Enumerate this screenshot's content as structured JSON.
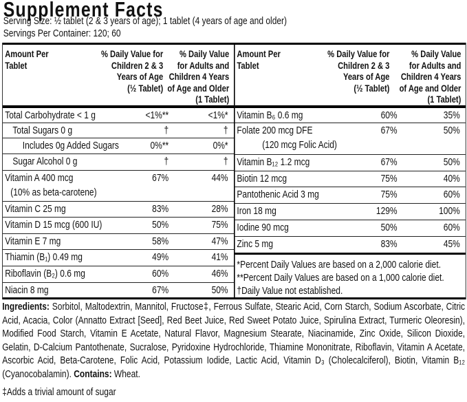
{
  "title": "Supplement Facts",
  "serving_size": "Serving Size: ½ tablet (2 & 3 years of age); 1 tablet (4 years of age and older)",
  "servings_per_container": "Servings Per Container: 120; 60",
  "table": {
    "header": [
      "Amount Per\nTablet",
      "% Daily Value for\nChildren 2 & 3\nYears of Age\n(½ Tablet)",
      "% Daily Value\nfor Adults and\nChildren 4 Years\nof Age and Older\n(1 Tablet)"
    ],
    "left_rows": [
      {
        "name": "Total Carbohydrate < 1 g",
        "children": "<1%**",
        "adults": "<1%*"
      },
      {
        "name": "Total Sugars 0 g",
        "children": "†",
        "adults": "†"
      },
      {
        "name": "Includes 0g Added Sugars",
        "children": "0%**",
        "adults": "0%*"
      },
      {
        "name": "Sugar Alcohol 0 g",
        "children": "†",
        "adults": "†"
      },
      {
        "name": "Vitamin A 400 mcg",
        "note": "(10% as beta-carotene)",
        "children": "67%",
        "adults": "44%"
      },
      {
        "name": "Vitamin C 25 mg",
        "children": "83%",
        "adults": "28%"
      },
      {
        "name": "Vitamin D 15 mcg (600 IU)",
        "children": "50%",
        "adults": "75%"
      },
      {
        "name": "Vitamin E 7 mg",
        "children": "58%",
        "adults": "47%"
      },
      {
        "name": "Thiamin (B₁) 0.49 mg",
        "children": "49%",
        "adults": "41%"
      },
      {
        "name": "Riboflavin (B₂) 0.6 mg",
        "children": "60%",
        "adults": "46%"
      },
      {
        "name": "Niacin 8 mg",
        "children": "67%",
        "adults": "50%"
      }
    ],
    "right_rows": [
      {
        "name": "Vitamin B₆ 0.6 mg",
        "children": "60%",
        "adults": "35%"
      },
      {
        "name": "Folate 200 mcg DFE",
        "note": "(120 mcg Folic Acid)",
        "children": "67%",
        "adults": "50%"
      },
      {
        "name": "Vitamin B₁₂ 1.2 mcg",
        "children": "67%",
        "adults": "50%"
      },
      {
        "name": "Biotin 12 mcg",
        "children": "75%",
        "adults": "40%"
      },
      {
        "name": "Pantothenic Acid 3 mg",
        "children": "75%",
        "adults": "60%"
      },
      {
        "name": "Iron 18 mg",
        "children": "129%",
        "adults": "100%"
      },
      {
        "name": "Iodine 90 mcg",
        "children": "50%",
        "adults": "60%"
      },
      {
        "name": "Zinc 5 mg",
        "children": "83%",
        "adults": "45%"
      }
    ],
    "footnotes": [
      "*Percent Daily Values are based on a 2,000 calorie diet.",
      "**Percent Daily Values are based on a 1,000 calorie diet.",
      "†Daily Value not established."
    ]
  },
  "ingredients": {
    "label": "Ingredients:",
    "text": "Sorbitol, Maltodextrin, Mannitol, Fructose‡, Ferrous Sulfate, Stearic Acid, Corn Starch, Sodium Ascorbate, Citric Acid, Acacia, Color (Annatto Extract [Seed], Red Beet Juice, Red Sweet Potato Juice, Spirulina Extract, Turmeric Oleoresin), Modified Food Starch, Vitamin E Acetate, Natural Flavor, Magnesium Stearate, Niacinamide, Zinc Oxide, Silicon Dioxide, Gelatin, D-Calcium Pantothenate, Sucralose, Pyridoxine Hydrochloride, Thiamine Mononitrate, Riboflavin, Vitamin A Acetate, Ascorbic Acid, Beta-Carotene, Folic Acid, Potassium Iodide, Lactic Acid, Vitamin D₃ (Cholecalciferol), Biotin, Vitamin B₁₂ (Cyanocobalamin).",
    "contains_label": "Contains:",
    "contains": "Wheat.",
    "footnote": "‡Adds a trivial amount of sugar"
  }
}
